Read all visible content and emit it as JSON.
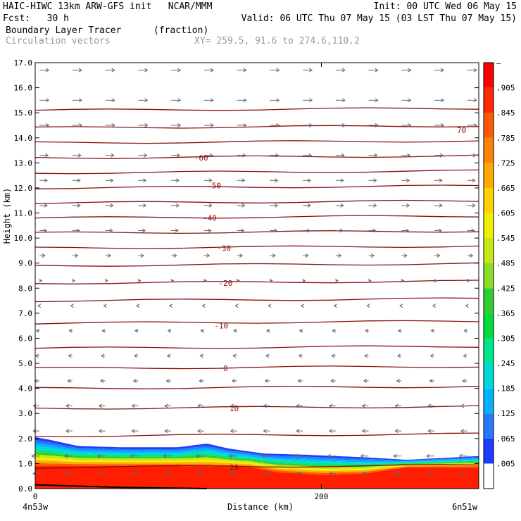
{
  "header": {
    "model_line": "HAIC-HIWC 13km ARW-GFS init   NCAR/MMM",
    "init_line": "Init: 00 UTC Wed 06 May 15",
    "fcst_line": "Fcst:   30 h",
    "valid_line": "Valid: 06 UTC Thu 07 May 15 (03 LST Thu 07 May 15)",
    "field1": "Boundary Layer Tracer",
    "field1_units": "(fraction)",
    "field2": "Circulation vectors",
    "xy_line": "XY= 259.5, 91.6 to 274.6,110.2"
  },
  "chart_data": {
    "type": "heatmap",
    "title": "Boundary Layer Tracer (fraction)",
    "xlabel": "Distance (km)",
    "ylabel": "Height (km)",
    "xlim": [
      0,
      310
    ],
    "ylim": [
      0,
      17
    ],
    "x_ticks": [
      0,
      200
    ],
    "x_tick_labels": [
      "0",
      "200"
    ],
    "x_end_labels": [
      "4n53w",
      "6n51w"
    ],
    "y_ticks": [
      0,
      1,
      2,
      3,
      4,
      5,
      6,
      7,
      8,
      9,
      10,
      11,
      12,
      13,
      14,
      15,
      16,
      17
    ],
    "y_tick_labels": [
      "0.0",
      "1.0",
      "2.0",
      "3.0",
      "4.0",
      "5.0",
      "6.0",
      "7.0",
      "8.0",
      "9.0",
      "10.0",
      "11.0",
      "12.0",
      "13.0",
      "14.0",
      "15.0",
      "16.0",
      "17.0"
    ],
    "colorbar": {
      "labels": [
        ".005",
        ".065",
        ".125",
        ".185",
        ".245",
        ".305",
        ".365",
        ".425",
        ".485",
        ".545",
        ".605",
        ".665",
        ".725",
        ".785",
        ".845",
        ".905",
        "–"
      ],
      "colors": [
        "#ffffff",
        "#1e3cff",
        "#2878ff",
        "#00b4ff",
        "#00d8d8",
        "#00e68c",
        "#00dc3c",
        "#32cd32",
        "#8cdc28",
        "#c8e614",
        "#f0f000",
        "#ffd200",
        "#ffaa00",
        "#ff8200",
        "#ff5a00",
        "#ff2800",
        "#ff0000"
      ]
    },
    "tracer_top_km": {
      "x": [
        0,
        10,
        30,
        60,
        100,
        120,
        135,
        160,
        190,
        230,
        260,
        310
      ],
      "y": [
        2.05,
        1.95,
        1.7,
        1.65,
        1.65,
        1.8,
        1.6,
        1.4,
        1.35,
        1.25,
        1.15,
        1.3
      ]
    },
    "tracer_red_top_km": {
      "x": [
        0,
        100,
        150,
        170,
        200,
        230,
        260,
        310
      ],
      "y": [
        0.9,
        0.9,
        0.85,
        0.65,
        0.55,
        0.6,
        0.85,
        0.85
      ]
    },
    "isotherm_labels": [
      {
        "value": "70",
        "x": 298,
        "y": 14.3
      },
      {
        "value": "-60",
        "x": 116,
        "y": 13.2
      },
      {
        "value": "-50",
        "x": 125,
        "y": 12.1
      },
      {
        "value": "-40",
        "x": 122,
        "y": 10.8
      },
      {
        "value": "-30",
        "x": 132,
        "y": 9.6
      },
      {
        "value": "-20",
        "x": 133,
        "y": 8.2
      },
      {
        "value": "-10",
        "x": 130,
        "y": 6.5
      },
      {
        "value": "0",
        "x": 133,
        "y": 4.8
      },
      {
        "value": "10",
        "x": 139,
        "y": 3.2
      },
      {
        "value": "20",
        "x": 139,
        "y": 0.85
      }
    ],
    "isotherm_levels_km": [
      15.1,
      14.4,
      13.8,
      13.2,
      12.6,
      12.0,
      11.4,
      10.8,
      10.2,
      9.6,
      8.9,
      8.2,
      7.5,
      6.6,
      5.6,
      4.8,
      4.0,
      3.2,
      2.1,
      0.85
    ],
    "vectors": {
      "x_columns_km": [
        3,
        26,
        49,
        72,
        95,
        118,
        141,
        164,
        187,
        210,
        233,
        256,
        279,
        302
      ],
      "levels_km": [
        16.7,
        15.5,
        14.5,
        13.3,
        12.3,
        11.3,
        10.3,
        9.3,
        8.3,
        7.3,
        6.3,
        5.3,
        4.3,
        3.3,
        2.3,
        1.3,
        0.6
      ],
      "u_by_level": [
        0.6,
        0.6,
        0.6,
        0.55,
        0.5,
        0.5,
        0.45,
        0.35,
        0.15,
        -0.1,
        -0.2,
        -0.25,
        -0.3,
        -0.4,
        -0.4,
        -0.5,
        -0.4
      ]
    }
  }
}
